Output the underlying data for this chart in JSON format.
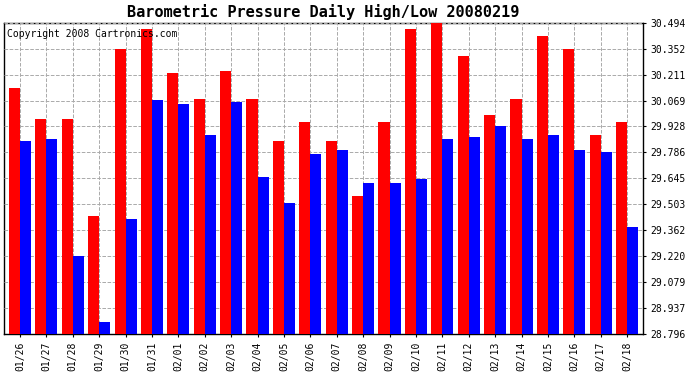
{
  "title": "Barometric Pressure Daily High/Low 20080219",
  "copyright": "Copyright 2008 Cartronics.com",
  "dates": [
    "01/26",
    "01/27",
    "01/28",
    "01/29",
    "01/30",
    "01/31",
    "02/01",
    "02/02",
    "02/03",
    "02/04",
    "02/05",
    "02/06",
    "02/07",
    "02/08",
    "02/09",
    "02/10",
    "02/11",
    "02/12",
    "02/13",
    "02/14",
    "02/15",
    "02/16",
    "02/17",
    "02/18"
  ],
  "highs": [
    30.14,
    29.97,
    29.97,
    29.44,
    30.35,
    30.46,
    30.22,
    30.08,
    30.23,
    30.08,
    29.85,
    29.95,
    29.85,
    29.55,
    29.95,
    30.46,
    30.49,
    30.31,
    29.99,
    30.08,
    30.42,
    30.35,
    29.88,
    29.95
  ],
  "lows": [
    29.85,
    29.86,
    29.22,
    28.86,
    29.42,
    30.07,
    30.05,
    29.88,
    30.06,
    29.65,
    29.51,
    29.78,
    29.8,
    29.62,
    29.62,
    29.64,
    29.86,
    29.87,
    29.93,
    29.86,
    29.88,
    29.8,
    29.79,
    29.38
  ],
  "high_color": "#ff0000",
  "low_color": "#0000ff",
  "bg_color": "#ffffff",
  "plot_bg_color": "#ffffff",
  "grid_color": "#aaaaaa",
  "ymin": 28.796,
  "ymax": 30.494,
  "yticks": [
    28.796,
    28.937,
    29.079,
    29.22,
    29.362,
    29.503,
    29.645,
    29.786,
    29.928,
    30.069,
    30.211,
    30.352,
    30.494
  ],
  "title_fontsize": 11,
  "copyright_fontsize": 7,
  "tick_fontsize": 7,
  "bar_width": 0.42
}
